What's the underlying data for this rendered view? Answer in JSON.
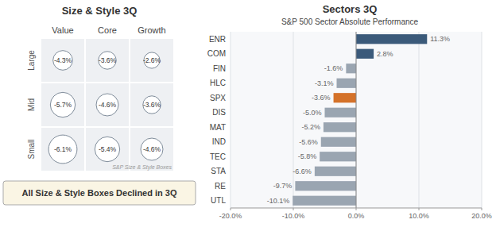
{
  "chart_data": [
    {
      "type": "matrix",
      "title": "Size & Style 3Q",
      "categories": [
        "Value",
        "Core",
        "Growth"
      ],
      "series": [
        {
          "name": "Large",
          "values": [
            -4.3,
            -3.6,
            -2.6
          ],
          "value_labels": [
            "-4.3%",
            "-3.6%",
            "-2.6%"
          ],
          "sizes": [
            0.22,
            0.2,
            0.18
          ]
        },
        {
          "name": "Mid",
          "values": [
            -5.7,
            -4.6,
            -3.6
          ],
          "value_labels": [
            "-5.7%",
            "-4.6%",
            "-3.6%"
          ],
          "sizes": [
            0.28,
            0.25,
            0.2
          ]
        },
        {
          "name": "Small",
          "values": [
            -6.1,
            -5.4,
            -4.6
          ],
          "value_labels": [
            "-6.1%",
            "-5.4%",
            "-4.6%"
          ],
          "sizes": [
            0.32,
            0.28,
            0.25
          ]
        }
      ],
      "data_labels": true,
      "annotations": [
        "S&P Size & Style Boxes",
        "All Size & Style Boxes Declined in 3Q"
      ]
    },
    {
      "type": "bar",
      "orientation": "horizontal",
      "title": "Sectors 3Q",
      "subtitle": "S&P 500 Sector Absolute Performance",
      "categories": [
        "ENR",
        "COM",
        "FIN",
        "HLC",
        "SPX",
        "DIS",
        "MAT",
        "IND",
        "TEC",
        "STA",
        "RE",
        "UTL"
      ],
      "values": [
        11.3,
        2.8,
        -1.6,
        -3.1,
        -3.6,
        -5.0,
        -5.2,
        -5.6,
        -5.8,
        -6.6,
        -9.7,
        -10.1
      ],
      "value_labels": [
        "11.3%",
        "2.8%",
        "-1.6%",
        "-3.1%",
        "-3.6%",
        "-5.0%",
        "-5.2%",
        "-5.6%",
        "-5.8%",
        "-6.6%",
        "-9.7%",
        "-10.1%"
      ],
      "colors": [
        "#3b5a7a",
        "#3b5a7a",
        "#9aa5b1",
        "#9aa5b1",
        "#d4722a",
        "#9aa5b1",
        "#9aa5b1",
        "#9aa5b1",
        "#9aa5b1",
        "#9aa5b1",
        "#9aa5b1",
        "#9aa5b1"
      ],
      "data_labels": true,
      "xlim": [
        -20,
        20
      ],
      "xticks": [
        {
          "value": -20,
          "label": "-20.0%"
        },
        {
          "value": -10,
          "label": "-10.0%"
        },
        {
          "value": 0,
          "label": "0.0%"
        },
        {
          "value": 10,
          "label": "10.0%"
        },
        {
          "value": 20,
          "label": "20.0%"
        }
      ],
      "grid": true
    }
  ]
}
